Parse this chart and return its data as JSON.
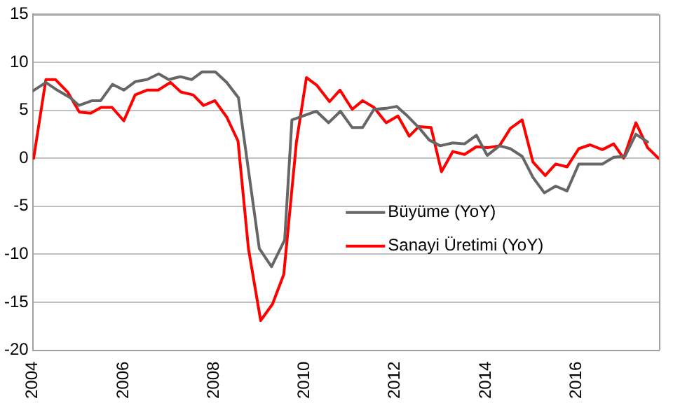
{
  "chart_data": {
    "type": "line",
    "xlim": [
      2004,
      2017.82
    ],
    "xticks": [
      2004,
      2006,
      2008,
      2010,
      2012,
      2014,
      2016
    ],
    "ylim": [
      -20,
      15
    ],
    "yticks": [
      -20,
      -15,
      -10,
      -5,
      0,
      5,
      10,
      15
    ],
    "grid": "y",
    "legend": "right",
    "marker": "none",
    "line_style": "solid",
    "series": [
      {
        "name": "Büyüme (YoY)",
        "color": "#666666",
        "x": [
          2004.0,
          2004.29,
          2004.54,
          2004.83,
          2005.02,
          2005.31,
          2005.5,
          2005.76,
          2006.01,
          2006.27,
          2006.52,
          2006.78,
          2007.0,
          2007.26,
          2007.51,
          2007.74,
          2008.03,
          2008.28,
          2008.54,
          2009.0,
          2009.27,
          2009.56,
          2009.72,
          2010.26,
          2010.53,
          2010.79,
          2011.05,
          2011.28,
          2011.53,
          2011.8,
          2012.03,
          2012.27,
          2012.52,
          2012.75,
          2012.99,
          2013.27,
          2013.53,
          2013.79,
          2014.03,
          2014.3,
          2014.54,
          2014.8,
          2015.04,
          2015.29,
          2015.54,
          2015.79,
          2016.05,
          2016.32,
          2016.57,
          2016.82,
          2017.07,
          2017.31,
          2017.57
        ],
        "values": [
          7.0,
          7.9,
          7.1,
          6.3,
          5.5,
          6.0,
          6.0,
          7.7,
          7.1,
          8.0,
          8.2,
          8.8,
          8.2,
          8.5,
          8.2,
          9.0,
          9.0,
          7.9,
          6.3,
          -9.4,
          -11.3,
          -8.5,
          4.0,
          4.9,
          3.7,
          4.9,
          3.2,
          3.2,
          5.1,
          5.2,
          5.4,
          4.4,
          3.2,
          1.9,
          1.3,
          1.6,
          1.5,
          2.4,
          0.3,
          1.3,
          1.0,
          0.2,
          -2.0,
          -3.6,
          -2.9,
          -3.4,
          -0.6,
          -0.6,
          -0.6,
          0.1,
          0.2,
          2.5,
          1.7
        ]
      },
      {
        "name": "Sanayi Üretimi (YoY)",
        "color": "#ff0000",
        "x": [
          2004.02,
          2004.29,
          2004.5,
          2004.77,
          2005.03,
          2005.28,
          2005.51,
          2005.75,
          2006.01,
          2006.26,
          2006.52,
          2006.77,
          2007.04,
          2007.27,
          2007.54,
          2007.77,
          2008.02,
          2008.28,
          2008.53,
          2008.76,
          2009.03,
          2009.29,
          2009.54,
          2009.82,
          2010.04,
          2010.27,
          2010.55,
          2010.78,
          2011.05,
          2011.28,
          2011.53,
          2011.8,
          2012.06,
          2012.31,
          2012.52,
          2012.79,
          2013.02,
          2013.27,
          2013.53,
          2013.79,
          2014.03,
          2014.3,
          2014.54,
          2014.8,
          2015.04,
          2015.31,
          2015.54,
          2015.79,
          2016.05,
          2016.3,
          2016.57,
          2016.82,
          2017.04,
          2017.31,
          2017.57,
          2017.81
        ],
        "values": [
          0.0,
          8.2,
          8.2,
          6.9,
          4.8,
          4.7,
          5.3,
          5.3,
          3.9,
          6.6,
          7.1,
          7.1,
          7.9,
          6.9,
          6.6,
          5.5,
          6.0,
          4.3,
          1.8,
          -9.4,
          -16.9,
          -15.2,
          -12.1,
          1.7,
          8.4,
          7.6,
          5.9,
          7.1,
          5.1,
          6.0,
          5.3,
          3.7,
          4.4,
          2.3,
          3.3,
          3.2,
          -1.4,
          0.7,
          0.4,
          1.2,
          1.1,
          1.3,
          3.1,
          4.0,
          -0.4,
          -1.8,
          -0.6,
          -0.9,
          1.0,
          1.4,
          0.9,
          1.5,
          0.0,
          3.7,
          1.1,
          0.0
        ]
      }
    ]
  }
}
